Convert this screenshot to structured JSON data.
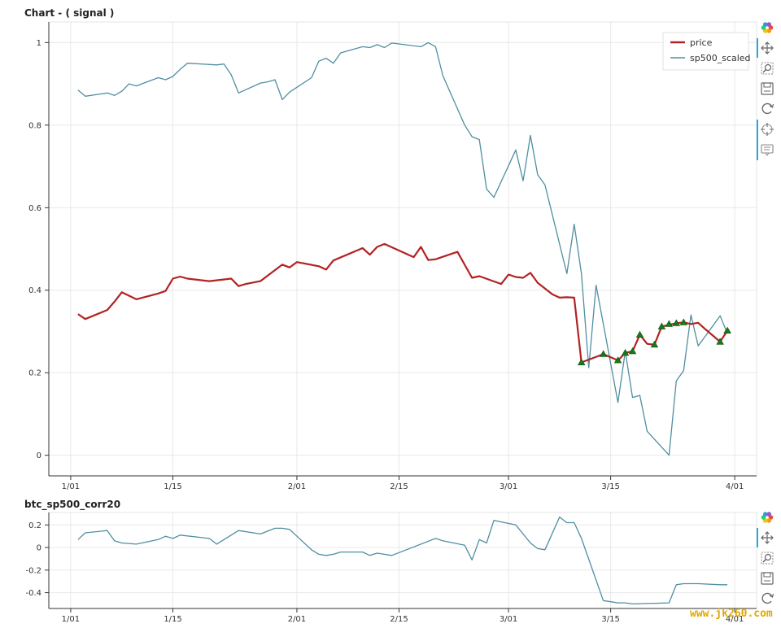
{
  "watermark": "www.jk260.com",
  "toolbar": {
    "main": [
      "bokeh-logo-icon",
      "pan-icon",
      "box-zoom-icon",
      "save-icon",
      "reset-icon",
      "crosshair-icon",
      "hover-icon"
    ],
    "corr": [
      "bokeh-logo-icon",
      "pan-icon",
      "box-zoom-icon",
      "save-icon",
      "reset-icon"
    ]
  },
  "chart_data": [
    {
      "type": "line",
      "title": "Chart - ( signal )",
      "x_tick_labels": [
        "1/01",
        "1/15",
        "2/01",
        "2/15",
        "3/01",
        "3/15",
        "4/01"
      ],
      "x_tick_dates": [
        "2020-01-01",
        "2020-01-15",
        "2020-02-01",
        "2020-02-15",
        "2020-03-01",
        "2020-03-15",
        "2020-04-01"
      ],
      "xlim": [
        "2019-12-29",
        "2020-04-04"
      ],
      "y_ticks": [
        0,
        0.2,
        0.4,
        0.6,
        0.8,
        1
      ],
      "y_tick_labels": [
        "0",
        "0.2",
        "0.4",
        "0.6",
        "0.8",
        "1"
      ],
      "ylim": [
        -0.05,
        1.05
      ],
      "grid": true,
      "legend_position": "top-right",
      "colors": {
        "price": "#b22222",
        "sp500_scaled": "#4f8fa0",
        "markers": "#1a7a1a"
      },
      "series": [
        {
          "name": "price",
          "x": [
            "2020-01-02",
            "2020-01-03",
            "2020-01-06",
            "2020-01-07",
            "2020-01-08",
            "2020-01-10",
            "2020-01-13",
            "2020-01-14",
            "2020-01-15",
            "2020-01-16",
            "2020-01-17",
            "2020-01-20",
            "2020-01-23",
            "2020-01-24",
            "2020-01-25",
            "2020-01-27",
            "2020-01-30",
            "2020-01-31",
            "2020-02-01",
            "2020-02-04",
            "2020-02-05",
            "2020-02-06",
            "2020-02-10",
            "2020-02-11",
            "2020-02-12",
            "2020-02-13",
            "2020-02-17",
            "2020-02-18",
            "2020-02-19",
            "2020-02-20",
            "2020-02-23",
            "2020-02-25",
            "2020-02-26",
            "2020-02-29",
            "2020-03-01",
            "2020-03-02",
            "2020-03-03",
            "2020-03-04",
            "2020-03-05",
            "2020-03-07",
            "2020-03-08",
            "2020-03-09",
            "2020-03-10",
            "2020-03-11",
            "2020-03-14",
            "2020-03-16",
            "2020-03-17",
            "2020-03-18",
            "2020-03-19",
            "2020-03-20",
            "2020-03-21",
            "2020-03-22",
            "2020-03-24",
            "2020-03-25",
            "2020-03-26",
            "2020-03-27",
            "2020-03-28",
            "2020-03-30",
            "2020-03-31"
          ],
          "values": [
            0.342,
            0.33,
            0.352,
            0.372,
            0.395,
            0.378,
            0.392,
            0.398,
            0.428,
            0.433,
            0.428,
            0.422,
            0.428,
            0.41,
            0.415,
            0.422,
            0.462,
            0.455,
            0.468,
            0.458,
            0.45,
            0.472,
            0.502,
            0.486,
            0.505,
            0.512,
            0.48,
            0.505,
            0.473,
            0.475,
            0.493,
            0.43,
            0.434,
            0.415,
            0.438,
            0.432,
            0.43,
            0.442,
            0.418,
            0.39,
            0.382,
            0.383,
            0.382,
            0.225,
            0.245,
            0.23,
            0.248,
            0.252,
            0.292,
            0.27,
            0.268,
            0.312,
            0.32,
            0.322,
            0.318,
            0.321,
            0.305,
            0.275,
            0.302
          ]
        },
        {
          "name": "sp500_scaled",
          "x": [
            "2020-01-02",
            "2020-01-03",
            "2020-01-06",
            "2020-01-07",
            "2020-01-08",
            "2020-01-09",
            "2020-01-10",
            "2020-01-13",
            "2020-01-14",
            "2020-01-15",
            "2020-01-16",
            "2020-01-17",
            "2020-01-21",
            "2020-01-22",
            "2020-01-23",
            "2020-01-24",
            "2020-01-27",
            "2020-01-28",
            "2020-01-29",
            "2020-01-30",
            "2020-01-31",
            "2020-02-03",
            "2020-02-04",
            "2020-02-05",
            "2020-02-06",
            "2020-02-07",
            "2020-02-10",
            "2020-02-11",
            "2020-02-12",
            "2020-02-13",
            "2020-02-14",
            "2020-02-18",
            "2020-02-19",
            "2020-02-20",
            "2020-02-21",
            "2020-02-24",
            "2020-02-25",
            "2020-02-26",
            "2020-02-27",
            "2020-02-28",
            "2020-03-02",
            "2020-03-03",
            "2020-03-04",
            "2020-03-05",
            "2020-03-06",
            "2020-03-09",
            "2020-03-10",
            "2020-03-11",
            "2020-03-12",
            "2020-03-13",
            "2020-03-16",
            "2020-03-17",
            "2020-03-18",
            "2020-03-19",
            "2020-03-20",
            "2020-03-23",
            "2020-03-24",
            "2020-03-25",
            "2020-03-26",
            "2020-03-27",
            "2020-03-30",
            "2020-03-31"
          ],
          "values": [
            0.885,
            0.87,
            0.878,
            0.872,
            0.882,
            0.9,
            0.895,
            0.915,
            0.91,
            0.918,
            0.935,
            0.95,
            0.946,
            0.948,
            0.922,
            0.878,
            0.902,
            0.905,
            0.91,
            0.862,
            0.88,
            0.915,
            0.955,
            0.962,
            0.95,
            0.975,
            0.99,
            0.988,
            0.995,
            0.988,
            0.999,
            0.99,
            1.0,
            0.99,
            0.92,
            0.8,
            0.772,
            0.765,
            0.645,
            0.625,
            0.74,
            0.665,
            0.775,
            0.68,
            0.655,
            0.44,
            0.56,
            0.44,
            0.212,
            0.412,
            0.128,
            0.252,
            0.14,
            0.145,
            0.058,
            0.0,
            0.18,
            0.205,
            0.34,
            0.265,
            0.338,
            0.295
          ]
        }
      ],
      "markers": {
        "series": "price",
        "shape": "triangle",
        "x": [
          "2020-03-11",
          "2020-03-14",
          "2020-03-16",
          "2020-03-17",
          "2020-03-18",
          "2020-03-19",
          "2020-03-21",
          "2020-03-22",
          "2020-03-23",
          "2020-03-24",
          "2020-03-25",
          "2020-03-30",
          "2020-03-31"
        ],
        "values": [
          0.225,
          0.245,
          0.23,
          0.248,
          0.252,
          0.292,
          0.268,
          0.312,
          0.318,
          0.32,
          0.322,
          0.275,
          0.302
        ]
      }
    },
    {
      "type": "line",
      "title": "btc_sp500_corr20",
      "x_tick_labels": [
        "1/01",
        "1/15",
        "2/01",
        "2/15",
        "3/01",
        "3/15",
        "4/01"
      ],
      "x_tick_dates": [
        "2020-01-01",
        "2020-01-15",
        "2020-02-01",
        "2020-02-15",
        "2020-03-01",
        "2020-03-15",
        "2020-04-01"
      ],
      "xlim": [
        "2019-12-29",
        "2020-04-04"
      ],
      "y_ticks": [
        -0.4,
        -0.2,
        0,
        0.2
      ],
      "y_tick_labels": [
        "-0.4",
        "-0.2",
        "0",
        "0.2"
      ],
      "ylim": [
        -0.54,
        0.31
      ],
      "grid": true,
      "colors": {
        "line": "#4f8fa0"
      },
      "series": [
        {
          "name": "",
          "x": [
            "2020-01-02",
            "2020-01-03",
            "2020-01-06",
            "2020-01-07",
            "2020-01-08",
            "2020-01-10",
            "2020-01-13",
            "2020-01-14",
            "2020-01-15",
            "2020-01-16",
            "2020-01-20",
            "2020-01-21",
            "2020-01-22",
            "2020-01-24",
            "2020-01-27",
            "2020-01-29",
            "2020-01-30",
            "2020-01-31",
            "2020-02-03",
            "2020-02-04",
            "2020-02-05",
            "2020-02-06",
            "2020-02-07",
            "2020-02-10",
            "2020-02-11",
            "2020-02-12",
            "2020-02-13",
            "2020-02-14",
            "2020-02-20",
            "2020-02-21",
            "2020-02-24",
            "2020-02-25",
            "2020-02-26",
            "2020-02-27",
            "2020-02-28",
            "2020-03-02",
            "2020-03-03",
            "2020-03-04",
            "2020-03-05",
            "2020-03-06",
            "2020-03-08",
            "2020-03-09",
            "2020-03-10",
            "2020-03-11",
            "2020-03-14",
            "2020-03-15",
            "2020-03-16",
            "2020-03-17",
            "2020-03-18",
            "2020-03-23",
            "2020-03-24",
            "2020-03-25",
            "2020-03-27",
            "2020-03-30",
            "2020-03-31"
          ],
          "values": [
            0.07,
            0.13,
            0.15,
            0.06,
            0.04,
            0.03,
            0.07,
            0.1,
            0.08,
            0.11,
            0.08,
            0.03,
            0.07,
            0.15,
            0.12,
            0.17,
            0.17,
            0.16,
            -0.02,
            -0.06,
            -0.07,
            -0.06,
            -0.04,
            -0.04,
            -0.07,
            -0.05,
            -0.06,
            -0.07,
            0.08,
            0.06,
            0.02,
            -0.11,
            0.07,
            0.04,
            0.24,
            0.2,
            0.12,
            0.04,
            -0.01,
            -0.02,
            0.27,
            0.22,
            0.22,
            0.08,
            -0.47,
            -0.48,
            -0.49,
            -0.49,
            -0.5,
            -0.49,
            -0.33,
            -0.32,
            -0.32,
            -0.33,
            -0.33
          ]
        }
      ]
    }
  ]
}
